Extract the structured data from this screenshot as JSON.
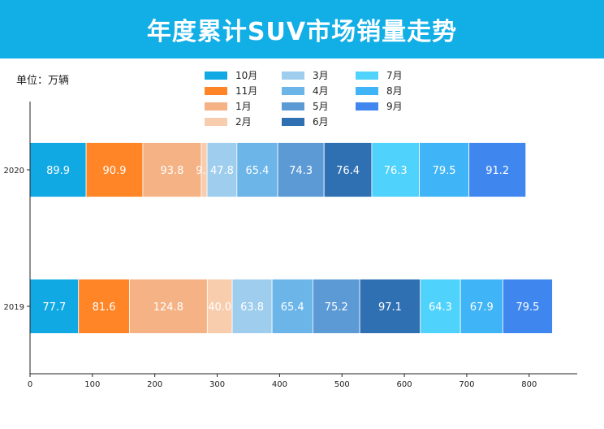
{
  "header": {
    "title": "年度累计SUV市场销量走势"
  },
  "unit_label": "单位：万辆",
  "chart_data": {
    "type": "bar",
    "orientation": "horizontal",
    "stacked": true,
    "categories": [
      "2020",
      "2019"
    ],
    "series": [
      {
        "name": "10月",
        "color": "#11a9e4",
        "values": [
          89.9,
          77.7
        ]
      },
      {
        "name": "11月",
        "color": "#ff8527",
        "values": [
          90.9,
          81.6
        ]
      },
      {
        "name": "1月",
        "color": "#f5b285",
        "values": [
          93.8,
          124.8
        ]
      },
      {
        "name": "2月",
        "color": "#f7cdae",
        "values": [
          9.2,
          40.0
        ]
      },
      {
        "name": "3月",
        "color": "#9fcdee",
        "values": [
          47.8,
          63.8
        ]
      },
      {
        "name": "4月",
        "color": "#6bb5e9",
        "values": [
          65.4,
          65.4
        ]
      },
      {
        "name": "5月",
        "color": "#5c9ad6",
        "values": [
          74.3,
          75.2
        ]
      },
      {
        "name": "6月",
        "color": "#2f70b3",
        "values": [
          76.4,
          97.1
        ]
      },
      {
        "name": "7月",
        "color": "#4fd2fb",
        "values": [
          76.3,
          64.3
        ]
      },
      {
        "name": "8月",
        "color": "#3fb4f6",
        "values": [
          79.5,
          67.9
        ]
      },
      {
        "name": "9月",
        "color": "#3f87ef",
        "values": [
          91.2,
          79.5
        ]
      }
    ],
    "value_labels": [
      [
        "89.9",
        "90.9",
        "93.8",
        "9.2",
        "47.8",
        "65.4",
        "74.3",
        "76.4",
        "76.3",
        "79.5",
        "91.2"
      ],
      [
        "77.7",
        "81.6",
        "124.8",
        "40.0",
        "63.8",
        "65.4",
        "75.2",
        "97.1",
        "64.3",
        "67.9",
        "79.5"
      ]
    ],
    "xticks": [
      0,
      100,
      200,
      300,
      400,
      500,
      600,
      700,
      800
    ],
    "xlim": [
      0,
      878
    ],
    "xlabel": "",
    "ylabel": "",
    "grid": false,
    "legend_position": "top-center"
  }
}
